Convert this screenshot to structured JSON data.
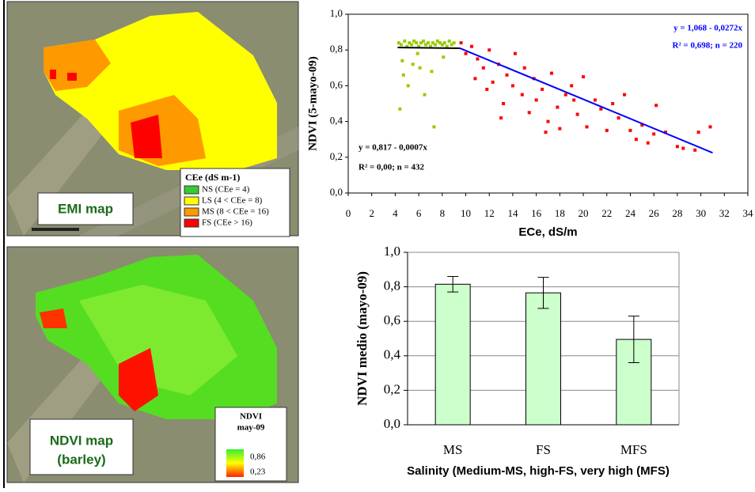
{
  "maps": {
    "emi": {
      "label": "EMI map",
      "legend_title": "CEe (dS m-1)",
      "legend": [
        {
          "label": "NS (CEe = 4)",
          "color": "#33cc33"
        },
        {
          "label": "LS (4 < CEe = 8)",
          "color": "#ffff00"
        },
        {
          "label": "MS (8 < CEe = 16)",
          "color": "#ff9900"
        },
        {
          "label": "FS (CEe > 16)",
          "color": "#ff0000"
        }
      ]
    },
    "ndvi": {
      "label_lines": [
        "NDVI map",
        "(barley)"
      ],
      "legend_title": [
        "NDVI",
        "may-09"
      ],
      "legend_high": "0,86",
      "legend_low": "0,23"
    }
  },
  "chart_data": [
    {
      "type": "scatter",
      "x_label": "ECe, dS/m",
      "y_label": "NDVI (5-mayo-09)",
      "xlim": [
        0,
        34
      ],
      "xticks": [
        0,
        2,
        4,
        6,
        8,
        10,
        12,
        14,
        16,
        18,
        20,
        22,
        24,
        26,
        28,
        30,
        32,
        34
      ],
      "ylim": [
        0,
        1
      ],
      "yticks": [
        {
          "value": 0,
          "label": "0,0"
        },
        {
          "value": 0.2,
          "label": "0,2"
        },
        {
          "value": 0.4,
          "label": "0,4"
        },
        {
          "value": 0.6,
          "label": "0,6"
        },
        {
          "value": 0.8,
          "label": "0,8"
        },
        {
          "value": 1,
          "label": "1,0"
        }
      ],
      "series": [
        {
          "color": "#99cc00",
          "x": [
            4.3,
            4.5,
            4.8,
            5.0,
            5.2,
            5.4,
            5.6,
            5.8,
            6.0,
            6.2,
            6.4,
            6.6,
            6.8,
            7.0,
            7.2,
            7.4,
            7.6,
            7.8,
            8.0,
            8.2,
            8.4,
            8.6,
            8.8,
            9.0,
            4.6,
            5.5,
            6.1,
            7.1,
            4.4,
            5.1,
            6.5,
            7.3,
            8.1,
            4.7,
            5.9
          ],
          "values": [
            0.84,
            0.83,
            0.85,
            0.82,
            0.84,
            0.83,
            0.85,
            0.84,
            0.82,
            0.84,
            0.85,
            0.83,
            0.84,
            0.82,
            0.84,
            0.83,
            0.85,
            0.84,
            0.83,
            0.84,
            0.82,
            0.85,
            0.83,
            0.84,
            0.74,
            0.72,
            0.7,
            0.68,
            0.47,
            0.6,
            0.55,
            0.37,
            0.76,
            0.66,
            0.78
          ]
        },
        {
          "color": "#ff0000",
          "x": [
            9.6,
            10.0,
            10.5,
            11.0,
            11.5,
            12.0,
            12.3,
            12.8,
            13.0,
            13.5,
            14.0,
            14.2,
            14.8,
            15.0,
            15.4,
            15.8,
            16.0,
            16.5,
            17.0,
            17.3,
            17.8,
            18.0,
            18.5,
            19.0,
            19.5,
            20.0,
            20.3,
            21.0,
            21.5,
            22.0,
            22.5,
            23.0,
            23.5,
            24.0,
            24.5,
            25.0,
            25.5,
            26.0,
            26.2,
            27.0,
            28.0,
            28.5,
            29.5,
            29.8,
            30.8,
            10.8,
            11.8,
            13.2,
            16.8,
            19.2
          ],
          "values": [
            0.84,
            0.78,
            0.82,
            0.75,
            0.7,
            0.8,
            0.62,
            0.72,
            0.42,
            0.66,
            0.6,
            0.78,
            0.55,
            0.7,
            0.45,
            0.64,
            0.52,
            0.58,
            0.4,
            0.67,
            0.48,
            0.36,
            0.55,
            0.6,
            0.44,
            0.65,
            0.37,
            0.52,
            0.47,
            0.35,
            0.5,
            0.42,
            0.55,
            0.35,
            0.3,
            0.38,
            0.28,
            0.33,
            0.49,
            0.34,
            0.26,
            0.25,
            0.24,
            0.34,
            0.37,
            0.64,
            0.58,
            0.5,
            0.34,
            0.52
          ]
        }
      ],
      "trend_lines": [
        {
          "color": "#000000",
          "x": [
            4.2,
            9.5
          ],
          "values": [
            0.814,
            0.81
          ]
        },
        {
          "color": "#0000ff",
          "x": [
            9.5,
            31
          ],
          "values": [
            0.81,
            0.225
          ]
        }
      ],
      "annotations": [
        {
          "text": "y = 1,068 - 0,0272x",
          "color": "#0000ff"
        },
        {
          "text": "R² = 0,698; n = 220",
          "color": "#0000ff"
        },
        {
          "text": "y = 0,817 - 0,0007x",
          "color": "#000000"
        },
        {
          "text": "R² = 0,00; n = 432",
          "color": "#000000"
        }
      ]
    },
    {
      "type": "bar",
      "x_label": "Salinity (Medium-MS, high-FS, very high (MFS)",
      "y_label": "NDVI medio (mayo-09)",
      "categories": [
        "MS",
        "FS",
        "MFS"
      ],
      "values": [
        0.815,
        0.765,
        0.495
      ],
      "errors": [
        0.045,
        0.09,
        0.135
      ],
      "color": "#ccffcc",
      "ylim": [
        0,
        1
      ],
      "yticks": [
        {
          "value": 0,
          "label": "0,0"
        },
        {
          "value": 0.2,
          "label": "0,2"
        },
        {
          "value": 0.4,
          "label": "0,4"
        },
        {
          "value": 0.6,
          "label": "0,6"
        },
        {
          "value": 0.8,
          "label": "0,8"
        },
        {
          "value": 1,
          "label": "1,0"
        }
      ],
      "grid": true
    }
  ]
}
